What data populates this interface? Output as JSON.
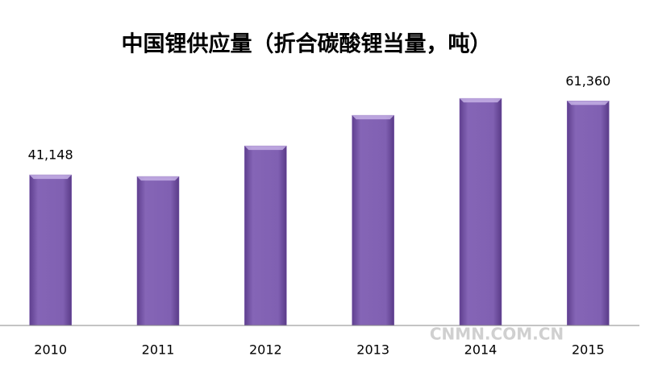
{
  "chart_data": {
    "type": "bar",
    "title": "中国锂供应量（折合碳酸锂当量，吨）",
    "categories": [
      "2010",
      "2011",
      "2012",
      "2013",
      "2014",
      "2015"
    ],
    "values": [
      41148,
      40700,
      49060,
      57420,
      62040,
      61360
    ],
    "value_labels": [
      "41,148",
      null,
      null,
      null,
      null,
      "61,360"
    ],
    "color": "#7d5cae",
    "ylim": [
      0,
      70000
    ],
    "watermark": "CNMN.COM.CN"
  }
}
